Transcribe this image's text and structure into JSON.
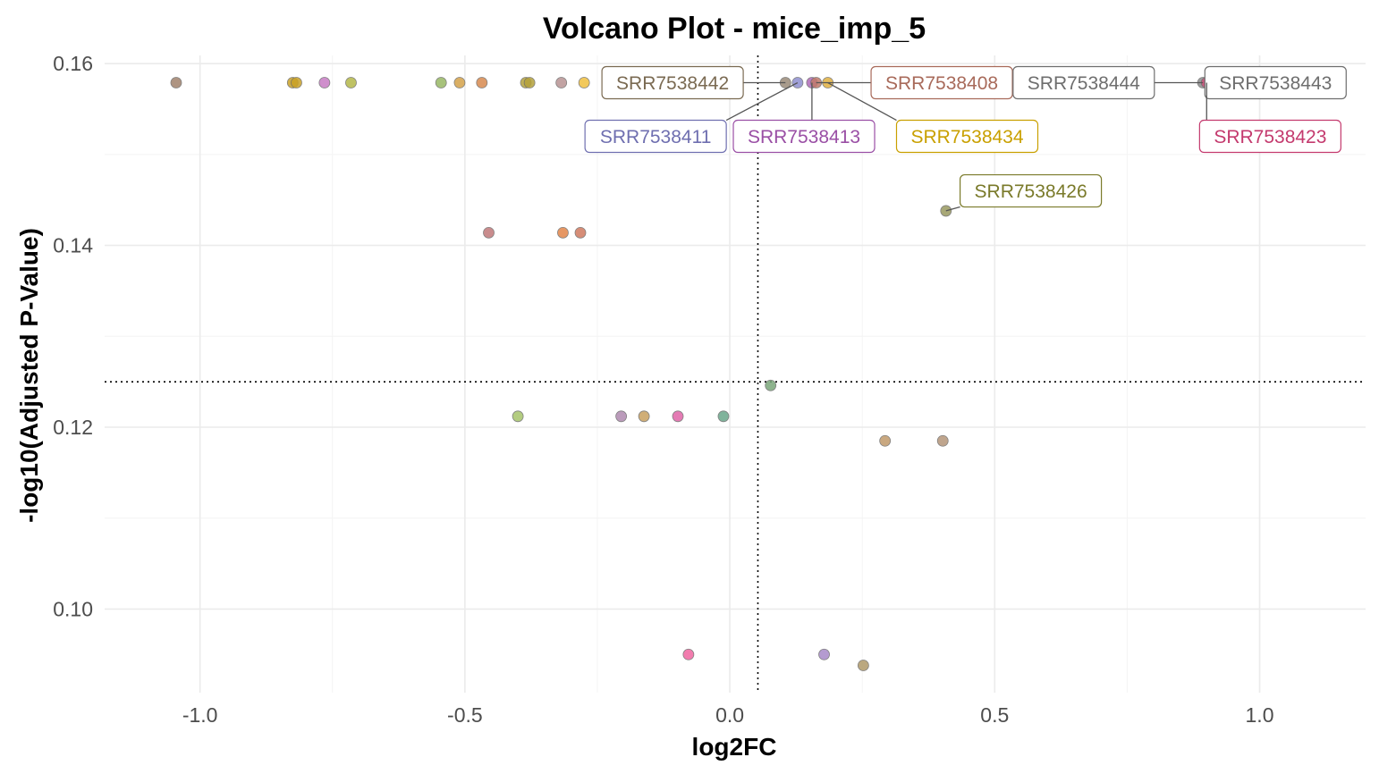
{
  "chart_data": {
    "type": "scatter",
    "title": "Volcano Plot - mice_imp_5",
    "xlabel": "log2FC",
    "ylabel": "-log10(Adjusted P-Value)",
    "xlim": [
      -1.18,
      1.2
    ],
    "ylim": [
      0.0908,
      0.1609
    ],
    "x_ticks": [
      -1.0,
      -0.5,
      0.0,
      0.5,
      1.0
    ],
    "x_tick_labels": [
      "-1.0",
      "-0.5",
      "0.0",
      "0.5",
      "1.0"
    ],
    "y_ticks": [
      0.1,
      0.12,
      0.14,
      0.16
    ],
    "y_tick_labels": [
      "0.10",
      "0.12",
      "0.14",
      "0.16"
    ],
    "grid": true,
    "vline_x": 0.053,
    "hline_y": 0.125,
    "points": [
      {
        "x": -1.045,
        "y": 0.1579,
        "color": "#a0826d"
      },
      {
        "x": -0.825,
        "y": 0.1579,
        "color": "#c9a227"
      },
      {
        "x": -0.818,
        "y": 0.1579,
        "color": "#c9a227"
      },
      {
        "x": -0.765,
        "y": 0.1579,
        "color": "#c77cc4"
      },
      {
        "x": -0.715,
        "y": 0.1579,
        "color": "#b5b84a"
      },
      {
        "x": -0.545,
        "y": 0.1579,
        "color": "#98b865"
      },
      {
        "x": -0.51,
        "y": 0.1579,
        "color": "#d4a24a"
      },
      {
        "x": -0.468,
        "y": 0.1579,
        "color": "#d88a4f"
      },
      {
        "x": -0.385,
        "y": 0.1579,
        "color": "#b5a23c"
      },
      {
        "x": -0.378,
        "y": 0.1579,
        "color": "#b5a23c"
      },
      {
        "x": -0.318,
        "y": 0.1579,
        "color": "#b89494"
      },
      {
        "x": -0.275,
        "y": 0.1579,
        "color": "#f0c040"
      },
      {
        "x": -0.185,
        "y": 0.1579,
        "color": "#e070b0"
      },
      {
        "x": 0.105,
        "y": 0.1579,
        "color": "#9a8a78"
      },
      {
        "x": 0.128,
        "y": 0.1579,
        "color": "#8f8fd0"
      },
      {
        "x": 0.155,
        "y": 0.1579,
        "color": "#b06ab8"
      },
      {
        "x": 0.163,
        "y": 0.1579,
        "color": "#c07a6a"
      },
      {
        "x": 0.185,
        "y": 0.1579,
        "color": "#e0b040"
      },
      {
        "x": 0.893,
        "y": 0.1579,
        "color": "#8c8c8c"
      },
      {
        "x": 0.9,
        "y": 0.1579,
        "color": "#d0507a"
      },
      {
        "x": -0.455,
        "y": 0.1414,
        "color": "#c0787a"
      },
      {
        "x": -0.315,
        "y": 0.1414,
        "color": "#e2864a"
      },
      {
        "x": -0.282,
        "y": 0.1414,
        "color": "#d07a60"
      },
      {
        "x": 0.408,
        "y": 0.1438,
        "color": "#9a9a60"
      },
      {
        "x": 0.077,
        "y": 0.1246,
        "color": "#7aa67a"
      },
      {
        "x": -0.4,
        "y": 0.1212,
        "color": "#a6c46a"
      },
      {
        "x": -0.205,
        "y": 0.1212,
        "color": "#b08ab0"
      },
      {
        "x": -0.162,
        "y": 0.1212,
        "color": "#c8a060"
      },
      {
        "x": -0.098,
        "y": 0.1212,
        "color": "#e064a8"
      },
      {
        "x": -0.012,
        "y": 0.1212,
        "color": "#6aa68a"
      },
      {
        "x": 0.293,
        "y": 0.1185,
        "color": "#c09a6a"
      },
      {
        "x": 0.402,
        "y": 0.1185,
        "color": "#b4967a"
      },
      {
        "x": -0.078,
        "y": 0.095,
        "color": "#f066a0"
      },
      {
        "x": 0.178,
        "y": 0.095,
        "color": "#a88ac8"
      },
      {
        "x": 0.252,
        "y": 0.0938,
        "color": "#b09a6a"
      }
    ],
    "labels": [
      {
        "text": "SRR7538442",
        "color": "#7a6a52",
        "anchor": {
          "x": 0.105,
          "y": 0.1579
        },
        "pos": {
          "x": -0.108,
          "y": 0.1579
        }
      },
      {
        "text": "SRR7538408",
        "color": "#a86a5a",
        "anchor": {
          "x": 0.163,
          "y": 0.1579
        },
        "pos": {
          "x": 0.4,
          "y": 0.1579
        }
      },
      {
        "text": "SRR7538444",
        "color": "#6e6e6e",
        "anchor": {
          "x": 0.893,
          "y": 0.1579
        },
        "pos": {
          "x": 0.668,
          "y": 0.1579
        }
      },
      {
        "text": "SRR7538443",
        "color": "#6e6e6e",
        "anchor": {
          "x": 0.893,
          "y": 0.1579
        },
        "pos": {
          "x": 1.03,
          "y": 0.1579
        }
      },
      {
        "text": "SRR7538411",
        "color": "#6f6fb0",
        "anchor": {
          "x": 0.128,
          "y": 0.1579
        },
        "pos": {
          "x": -0.14,
          "y": 0.152
        }
      },
      {
        "text": "SRR7538413",
        "color": "#9a4fa5",
        "anchor": {
          "x": 0.155,
          "y": 0.1579
        },
        "pos": {
          "x": 0.14,
          "y": 0.152
        }
      },
      {
        "text": "SRR7538434",
        "color": "#c9a000",
        "anchor": {
          "x": 0.185,
          "y": 0.1579
        },
        "pos": {
          "x": 0.448,
          "y": 0.152
        }
      },
      {
        "text": "SRR7538423",
        "color": "#c43a6e",
        "anchor": {
          "x": 0.9,
          "y": 0.1579
        },
        "pos": {
          "x": 1.02,
          "y": 0.152
        }
      },
      {
        "text": "SRR7538426",
        "color": "#7a7a2a",
        "anchor": {
          "x": 0.408,
          "y": 0.1438
        },
        "pos": {
          "x": 0.568,
          "y": 0.146
        }
      }
    ]
  }
}
